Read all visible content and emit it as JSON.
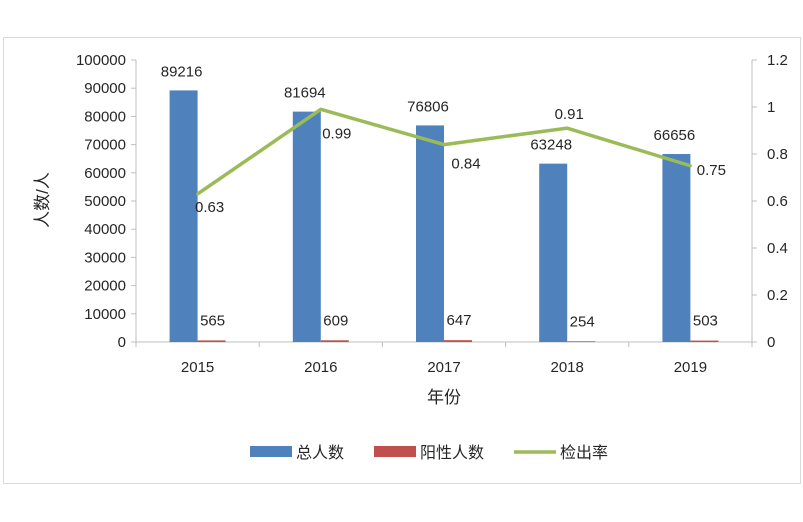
{
  "chart_data": {
    "type": "bar",
    "categories": [
      "2015",
      "2016",
      "2017",
      "2018",
      "2019"
    ],
    "series": [
      {
        "name": "总人数",
        "kind": "bar",
        "axis": "left",
        "color": "#4f81bd",
        "values": [
          89216,
          81694,
          76806,
          63248,
          66656
        ],
        "labels": [
          "89216",
          "81694",
          "76806",
          "63248",
          "66656"
        ]
      },
      {
        "name": "阳性人数",
        "kind": "bar",
        "axis": "left",
        "color": "#c0504d",
        "values": [
          565,
          609,
          647,
          254,
          503
        ],
        "labels": [
          "565",
          "609",
          "647",
          "254",
          "503"
        ]
      },
      {
        "name": "检出率",
        "kind": "line",
        "axis": "right",
        "color": "#9bbb59",
        "values": [
          0.63,
          0.99,
          0.84,
          0.91,
          0.75
        ],
        "labels": [
          "0.63",
          "0.99",
          "0.84",
          "0.91",
          "0.75"
        ]
      }
    ],
    "xlabel": "年份",
    "ylabel": "人数/人",
    "ylim": [
      0,
      100000
    ],
    "y2lim": [
      0,
      1.2
    ],
    "yticks": [
      "0",
      "10000",
      "20000",
      "30000",
      "40000",
      "50000",
      "60000",
      "70000",
      "80000",
      "90000",
      "100000"
    ],
    "y2ticks": [
      "0",
      "0.2",
      "0.4",
      "0.6",
      "0.8",
      "1",
      "1.2"
    ],
    "grid": false,
    "legend": "bottom"
  }
}
